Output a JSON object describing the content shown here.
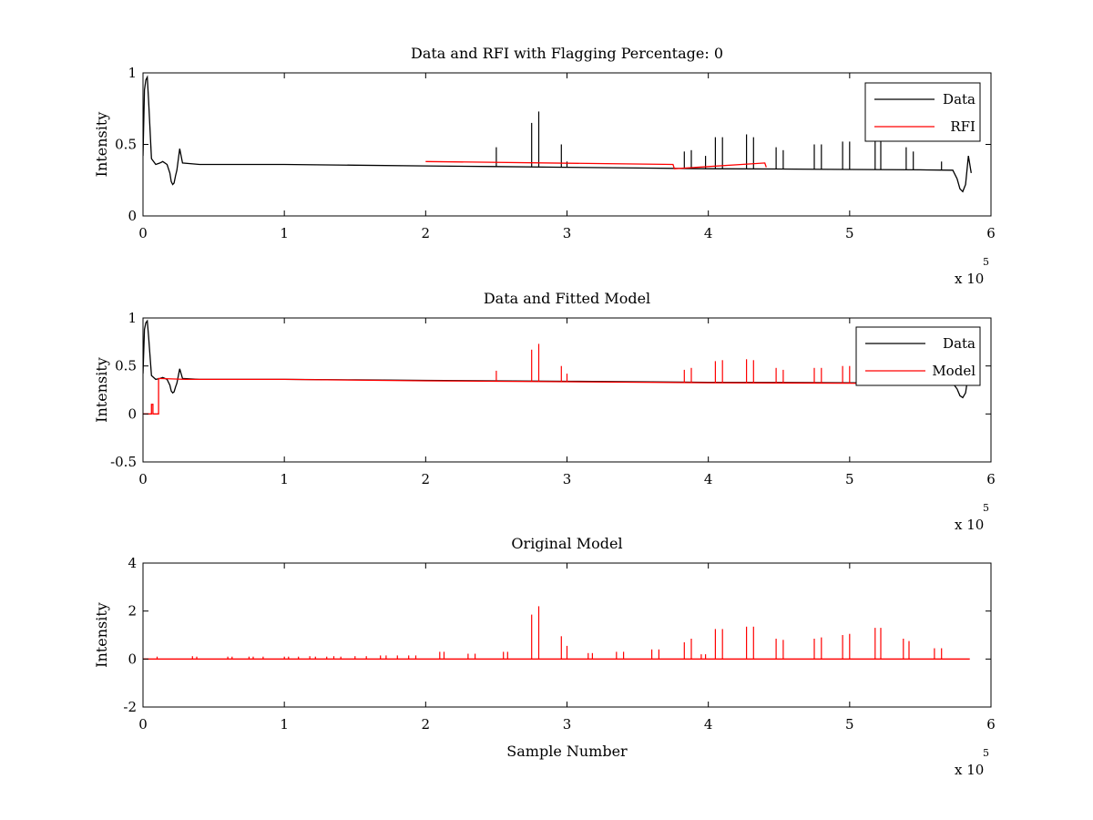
{
  "figure": {
    "background": "#ffffff"
  },
  "chart_data": [
    {
      "type": "line",
      "title": "Data and RFI with Flagging Percentage: 0",
      "xlabel": "",
      "ylabel": "Intensity",
      "xlim": [
        0,
        600000
      ],
      "ylim": [
        0,
        1
      ],
      "xticks": [
        0,
        1,
        2,
        3,
        4,
        5,
        6
      ],
      "yticks": [
        0,
        0.5,
        1
      ],
      "ytick_labels": [
        "0",
        "0.5",
        "1"
      ],
      "x_multiplier": {
        "base": "x 10",
        "exponent": "5"
      },
      "grid": false,
      "legend": {
        "placement": "top-right",
        "entries": [
          "Data",
          "RFI"
        ]
      },
      "series": [
        {
          "name": "Data",
          "color": "#000000",
          "x": [
            0,
            1000,
            2000,
            3000,
            4000,
            6000,
            9000,
            12000,
            14000,
            17000,
            19000,
            20000,
            21000,
            22000,
            23000,
            24000,
            26000,
            28000,
            40000,
            60000,
            80000,
            100000,
            150000,
            200000,
            250000,
            300000,
            350000,
            400000,
            450000,
            500000,
            550000,
            573000,
            576000,
            578000,
            580000,
            582000,
            584000,
            586000
          ],
          "y": [
            0.42,
            0.88,
            0.95,
            0.97,
            0.8,
            0.4,
            0.36,
            0.37,
            0.38,
            0.36,
            0.3,
            0.24,
            0.22,
            0.23,
            0.28,
            0.32,
            0.47,
            0.37,
            0.36,
            0.36,
            0.36,
            0.36,
            0.355,
            0.35,
            0.345,
            0.34,
            0.335,
            0.33,
            0.328,
            0.325,
            0.322,
            0.32,
            0.26,
            0.19,
            0.17,
            0.22,
            0.42,
            0.3
          ],
          "spikes": [
            [
              250000,
              0.48
            ],
            [
              275000,
              0.65
            ],
            [
              280000,
              0.73
            ],
            [
              296000,
              0.5
            ],
            [
              300000,
              0.38
            ],
            [
              383000,
              0.45
            ],
            [
              388000,
              0.46
            ],
            [
              398000,
              0.42
            ],
            [
              405000,
              0.55
            ],
            [
              410000,
              0.55
            ],
            [
              427000,
              0.57
            ],
            [
              432000,
              0.55
            ],
            [
              448000,
              0.48
            ],
            [
              453000,
              0.46
            ],
            [
              475000,
              0.5
            ],
            [
              480000,
              0.5
            ],
            [
              495000,
              0.52
            ],
            [
              500000,
              0.52
            ],
            [
              518000,
              0.55
            ],
            [
              522000,
              0.58
            ],
            [
              540000,
              0.48
            ],
            [
              545000,
              0.45
            ],
            [
              565000,
              0.38
            ]
          ]
        },
        {
          "name": "RFI",
          "color": "#ff0000",
          "x": [
            200000,
            375000,
            376000,
            440000,
            441000
          ],
          "y": [
            0.38,
            0.36,
            0.33,
            0.37,
            0.34
          ]
        }
      ]
    },
    {
      "type": "line",
      "title": "Data and Fitted Model",
      "xlabel": "",
      "ylabel": "Intensity",
      "xlim": [
        0,
        600000
      ],
      "ylim": [
        -0.5,
        1
      ],
      "xticks": [
        0,
        1,
        2,
        3,
        4,
        5,
        6
      ],
      "yticks": [
        -0.5,
        0,
        0.5,
        1
      ],
      "ytick_labels": [
        "-0.5",
        "0",
        "0.5",
        "1"
      ],
      "x_multiplier": {
        "base": "x 10",
        "exponent": "5"
      },
      "grid": false,
      "legend": {
        "placement": "top-right",
        "entries": [
          "Data",
          "Model"
        ]
      },
      "series": [
        {
          "name": "Data",
          "color": "#000000",
          "x": [
            0,
            1000,
            2000,
            3000,
            4000,
            6000,
            9000,
            12000,
            14000,
            17000,
            19000,
            20000,
            21000,
            22000,
            23000,
            24000,
            26000,
            28000,
            40000,
            60000,
            80000,
            100000,
            150000,
            200000,
            250000,
            300000,
            350000,
            400000,
            450000,
            500000,
            550000,
            573000,
            576000,
            578000,
            580000,
            582000,
            584000,
            586000
          ],
          "y": [
            0.42,
            0.88,
            0.95,
            0.97,
            0.8,
            0.4,
            0.36,
            0.37,
            0.38,
            0.36,
            0.3,
            0.24,
            0.22,
            0.23,
            0.28,
            0.32,
            0.47,
            0.37,
            0.36,
            0.36,
            0.36,
            0.36,
            0.355,
            0.35,
            0.345,
            0.34,
            0.335,
            0.33,
            0.328,
            0.325,
            0.322,
            0.32,
            0.26,
            0.19,
            0.17,
            0.22,
            0.42,
            0.3
          ],
          "spikes": []
        },
        {
          "name": "Model",
          "color": "#ff0000",
          "x": [
            0,
            6000,
            6000,
            7000,
            7000,
            11000,
            11000,
            30000,
            100000,
            200000,
            300000,
            400000,
            500000,
            565000
          ],
          "y": [
            0,
            0,
            0.1,
            0.1,
            0,
            0,
            0.37,
            0.36,
            0.36,
            0.345,
            0.335,
            0.325,
            0.32,
            0.31
          ],
          "spikes": [
            [
              250000,
              0.45
            ],
            [
              275000,
              0.67
            ],
            [
              280000,
              0.73
            ],
            [
              296000,
              0.5
            ],
            [
              300000,
              0.42
            ],
            [
              383000,
              0.46
            ],
            [
              388000,
              0.48
            ],
            [
              405000,
              0.55
            ],
            [
              410000,
              0.56
            ],
            [
              427000,
              0.57
            ],
            [
              432000,
              0.56
            ],
            [
              448000,
              0.48
            ],
            [
              453000,
              0.46
            ],
            [
              475000,
              0.48
            ],
            [
              480000,
              0.48
            ],
            [
              495000,
              0.5
            ],
            [
              500000,
              0.5
            ],
            [
              540000,
              0.45
            ],
            [
              545000,
              0.44
            ]
          ]
        }
      ]
    },
    {
      "type": "line",
      "title": "Original Model",
      "xlabel": "Sample Number",
      "ylabel": "Intensity",
      "xlim": [
        0,
        600000
      ],
      "ylim": [
        -2,
        4
      ],
      "xticks": [
        0,
        1,
        2,
        3,
        4,
        5,
        6
      ],
      "yticks": [
        -2,
        0,
        2,
        4
      ],
      "ytick_labels": [
        "-2",
        "0",
        "2",
        "4"
      ],
      "x_multiplier": {
        "base": "x 10",
        "exponent": "5"
      },
      "grid": false,
      "legend": null,
      "series": [
        {
          "color": "#ff0000",
          "x": [
            0,
            585000
          ],
          "y": [
            0,
            0
          ],
          "spikes": [
            [
              10000,
              0.1
            ],
            [
              35000,
              0.12
            ],
            [
              38000,
              0.1
            ],
            [
              60000,
              0.1
            ],
            [
              63000,
              0.1
            ],
            [
              75000,
              0.1
            ],
            [
              78000,
              0.1
            ],
            [
              85000,
              0.1
            ],
            [
              100000,
              0.1
            ],
            [
              103000,
              0.1
            ],
            [
              110000,
              0.1
            ],
            [
              118000,
              0.12
            ],
            [
              122000,
              0.1
            ],
            [
              130000,
              0.1
            ],
            [
              135000,
              0.12
            ],
            [
              140000,
              0.1
            ],
            [
              150000,
              0.12
            ],
            [
              158000,
              0.12
            ],
            [
              168000,
              0.15
            ],
            [
              172000,
              0.15
            ],
            [
              180000,
              0.15
            ],
            [
              188000,
              0.15
            ],
            [
              193000,
              0.15
            ],
            [
              210000,
              0.3
            ],
            [
              213000,
              0.3
            ],
            [
              230000,
              0.22
            ],
            [
              235000,
              0.22
            ],
            [
              255000,
              0.3
            ],
            [
              258000,
              0.3
            ],
            [
              275000,
              1.85
            ],
            [
              280000,
              2.2
            ],
            [
              296000,
              0.95
            ],
            [
              300000,
              0.55
            ],
            [
              315000,
              0.25
            ],
            [
              318000,
              0.25
            ],
            [
              335000,
              0.3
            ],
            [
              340000,
              0.3
            ],
            [
              360000,
              0.4
            ],
            [
              365000,
              0.4
            ],
            [
              383000,
              0.7
            ],
            [
              388000,
              0.85
            ],
            [
              395000,
              0.2
            ],
            [
              398000,
              0.2
            ],
            [
              405000,
              1.25
            ],
            [
              410000,
              1.25
            ],
            [
              427000,
              1.35
            ],
            [
              432000,
              1.35
            ],
            [
              448000,
              0.85
            ],
            [
              453000,
              0.8
            ],
            [
              475000,
              0.85
            ],
            [
              480000,
              0.9
            ],
            [
              495000,
              1.0
            ],
            [
              500000,
              1.05
            ],
            [
              518000,
              1.3
            ],
            [
              522000,
              1.3
            ],
            [
              538000,
              0.85
            ],
            [
              542000,
              0.75
            ],
            [
              560000,
              0.45
            ],
            [
              565000,
              0.45
            ]
          ]
        }
      ]
    }
  ]
}
